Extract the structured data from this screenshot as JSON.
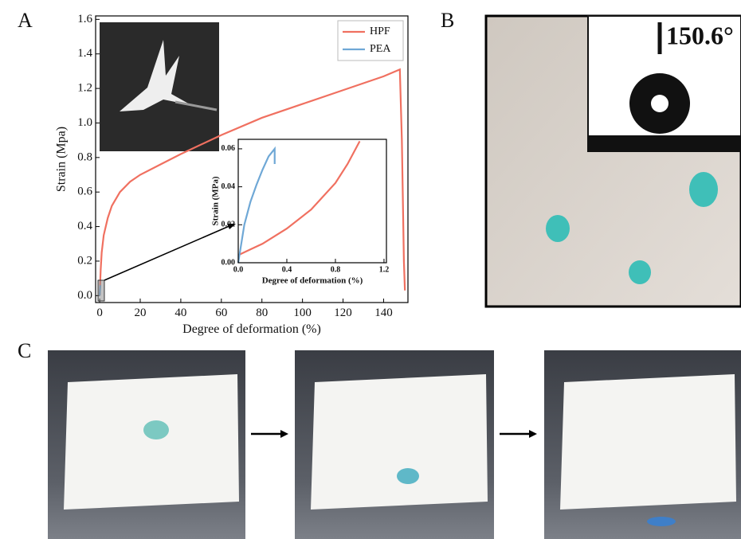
{
  "panel_labels": [
    "A",
    "B",
    "C"
  ],
  "contact_angle": "150.6°",
  "chart_data": [
    {
      "type": "line",
      "xlabel": "Degree of deformation (%)",
      "ylabel": "Strain (Mpa)",
      "xlim": [
        -2,
        152
      ],
      "ylim": [
        -0.04,
        1.62
      ],
      "xticks": [
        0,
        20,
        40,
        60,
        80,
        100,
        120,
        140
      ],
      "yticks": [
        {
          "value": 0,
          "label": "0.0"
        },
        0.2,
        0.4,
        0.6,
        0.8,
        {
          "value": 1,
          "label": "1.0"
        },
        1.2,
        1.4,
        1.6
      ],
      "legend": "upper right",
      "series": [
        {
          "name": "HPF",
          "color": "#f07060",
          "x": [
            0,
            0.5,
            1,
            2,
            4,
            6,
            10,
            15,
            20,
            30,
            40,
            60,
            80,
            100,
            120,
            140,
            148,
            149,
            150,
            150.5
          ],
          "values": [
            0,
            0.15,
            0.25,
            0.35,
            0.45,
            0.52,
            0.6,
            0.66,
            0.7,
            0.76,
            0.82,
            0.93,
            1.03,
            1.11,
            1.19,
            1.27,
            1.31,
            0.9,
            0.2,
            0.03
          ]
        },
        {
          "name": "PEA",
          "color": "#6fa8d6",
          "x": [
            0,
            0.3
          ],
          "values": [
            0,
            0.06
          ]
        }
      ]
    },
    {
      "type": "line",
      "xlabel": "Degree of deformation (%)",
      "ylabel": "Strain (MPa)",
      "xlim": [
        0,
        1.22
      ],
      "ylim": [
        0,
        0.065
      ],
      "xticks": [
        {
          "value": 0,
          "label": "0.0"
        },
        0.4,
        0.8,
        1.2
      ],
      "yticks": [
        {
          "value": 0,
          "label": "0.00"
        },
        0.02,
        0.04,
        0.06
      ],
      "series": [
        {
          "color": "#f07060",
          "x": [
            0,
            0.1,
            0.2,
            0.4,
            0.6,
            0.8,
            0.9,
            1.0
          ],
          "values": [
            0.004,
            0.007,
            0.01,
            0.018,
            0.028,
            0.042,
            0.052,
            0.064
          ]
        },
        {
          "color": "#6fa8d6",
          "x": [
            0,
            0.05,
            0.1,
            0.15,
            0.2,
            0.25,
            0.3,
            0.3
          ],
          "values": [
            0,
            0.02,
            0.032,
            0.041,
            0.049,
            0.056,
            0.06,
            0.052
          ]
        }
      ]
    }
  ]
}
